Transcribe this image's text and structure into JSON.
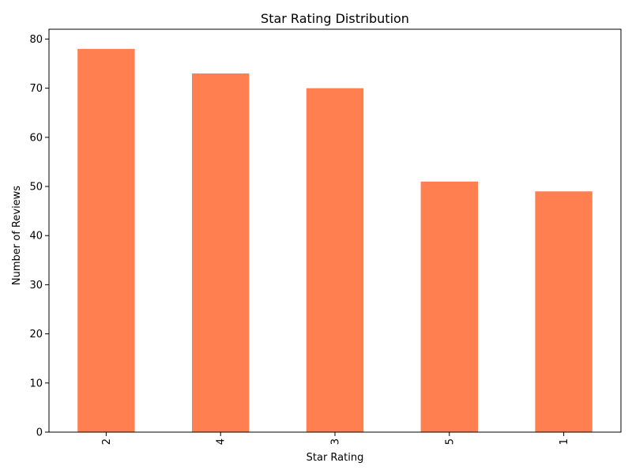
{
  "chart_data": {
    "type": "bar",
    "title": "Star Rating Distribution",
    "xlabel": "Star Rating",
    "ylabel": "Number of Reviews",
    "categories": [
      "2",
      "4",
      "3",
      "5",
      "1"
    ],
    "values": [
      78,
      73,
      70,
      51,
      49
    ],
    "ylim": [
      0,
      82
    ],
    "yticks": [
      0,
      10,
      20,
      30,
      40,
      50,
      60,
      70,
      80
    ],
    "bar_color": "#ff7f50",
    "grid": false,
    "x_tick_rotation": 90
  }
}
